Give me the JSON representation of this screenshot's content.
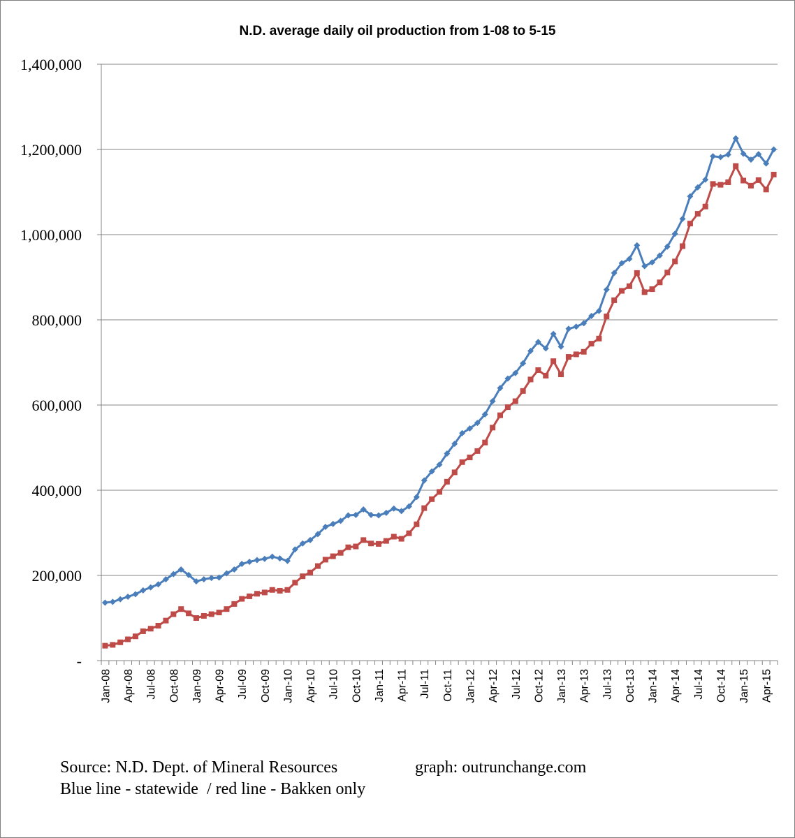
{
  "chart_data": {
    "type": "line",
    "title": "N.D. average daily oil production from 1-08 to 5-15",
    "xlabel": "",
    "ylabel": "",
    "ylim": [
      0,
      1400000
    ],
    "y_ticks": [
      {
        "value": 0,
        "label": "-"
      },
      {
        "value": 200000,
        "label": "200,000"
      },
      {
        "value": 400000,
        "label": "400,000"
      },
      {
        "value": 600000,
        "label": "600,000"
      },
      {
        "value": 800000,
        "label": "800,000"
      },
      {
        "value": 1000000,
        "label": "1,000,000"
      },
      {
        "value": 1200000,
        "label": "1,200,000"
      },
      {
        "value": 1400000,
        "label": "1,400,000"
      }
    ],
    "x_tick_labels": [
      "Jan-08",
      "Apr-08",
      "Jul-08",
      "Oct-08",
      "Jan-09",
      "Apr-09",
      "Jul-09",
      "Oct-09",
      "Jan-10",
      "Apr-10",
      "Jul-10",
      "Oct-10",
      "Jan-11",
      "Apr-11",
      "Jul-11",
      "Oct-11",
      "Jan-12",
      "Apr-12",
      "Jul-12",
      "Oct-12",
      "Jan-13",
      "Apr-13",
      "Jul-13",
      "Oct-13",
      "Jan-14",
      "Apr-14",
      "Jul-14",
      "Oct-14",
      "Jan-15",
      "Apr-15"
    ],
    "x_start": "2008-01",
    "grid": true,
    "legend": "none",
    "series": [
      {
        "color": "#4a7ebb",
        "marker": "diamond",
        "values": [
          136000,
          138000,
          144000,
          150000,
          156000,
          165000,
          172000,
          179000,
          191000,
          203000,
          214000,
          201000,
          186000,
          191000,
          194000,
          195000,
          205000,
          214000,
          227000,
          232000,
          236000,
          239000,
          244000,
          240000,
          234000,
          261000,
          275000,
          283000,
          297000,
          314000,
          321000,
          328000,
          341000,
          342000,
          355000,
          342000,
          341000,
          347000,
          357000,
          351000,
          362000,
          384000,
          423000,
          444000,
          460000,
          486000,
          509000,
          534000,
          545000,
          558000,
          578000,
          609000,
          640000,
          662000,
          675000,
          698000,
          727000,
          748000,
          733000,
          767000,
          737000,
          779000,
          784000,
          792000,
          809000,
          821000,
          871000,
          910000,
          933000,
          943000,
          975000,
          926000,
          935000,
          951000,
          972000,
          1002000,
          1037000,
          1090000,
          1111000,
          1129000,
          1184000,
          1182000,
          1188000,
          1226000,
          1190000,
          1176000,
          1189000,
          1167000,
          1200000
        ]
      },
      {
        "color": "#be4b48",
        "marker": "square",
        "values": [
          35000,
          37000,
          43000,
          50000,
          57000,
          69000,
          75000,
          82000,
          94000,
          109000,
          121000,
          111000,
          100000,
          105000,
          109000,
          113000,
          121000,
          133000,
          145000,
          151000,
          157000,
          160000,
          166000,
          164000,
          166000,
          183000,
          198000,
          207000,
          222000,
          237000,
          245000,
          253000,
          266000,
          268000,
          283000,
          275000,
          274000,
          281000,
          291000,
          286000,
          299000,
          320000,
          358000,
          379000,
          396000,
          420000,
          442000,
          466000,
          477000,
          492000,
          512000,
          547000,
          576000,
          595000,
          609000,
          633000,
          660000,
          682000,
          669000,
          703000,
          672000,
          713000,
          719000,
          725000,
          744000,
          756000,
          808000,
          846000,
          868000,
          879000,
          910000,
          865000,
          872000,
          888000,
          911000,
          937000,
          973000,
          1026000,
          1049000,
          1066000,
          1119000,
          1117000,
          1123000,
          1161000,
          1127000,
          1115000,
          1128000,
          1106000,
          1141000
        ]
      }
    ]
  },
  "footer": {
    "source": "Source: N.D. Dept. of Mineral Resources",
    "graph_credit": "graph: outrunchange.com",
    "legend_note": "Blue line - statewide  / red line - Bakken only"
  }
}
